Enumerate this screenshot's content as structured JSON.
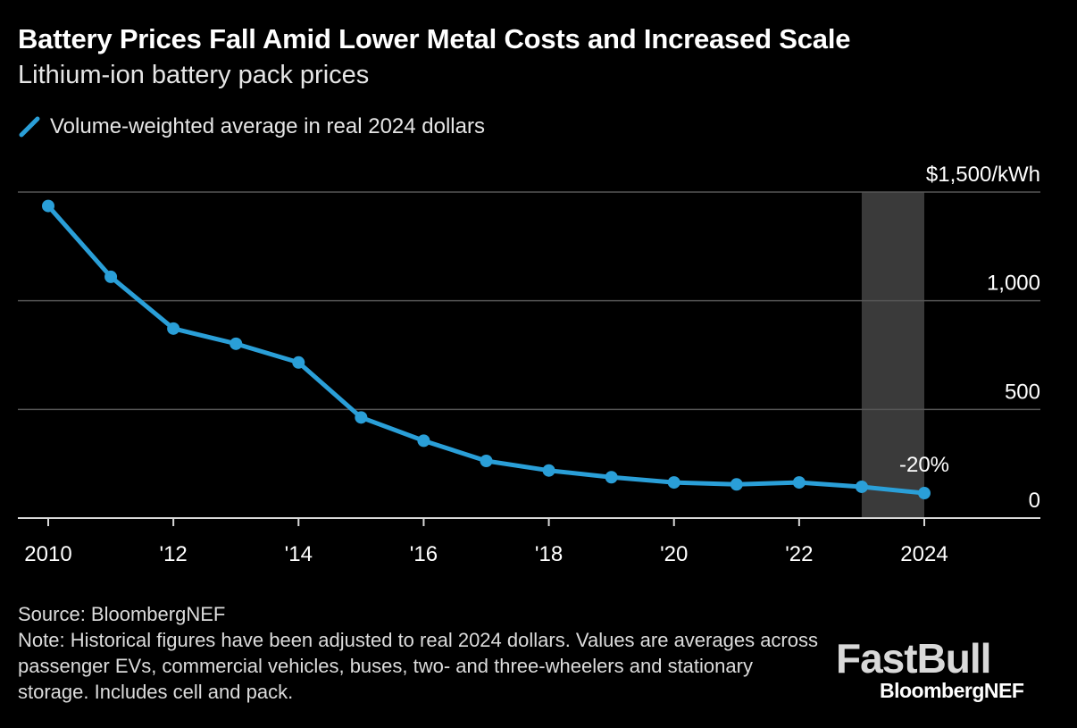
{
  "colors": {
    "line": "#2a9fd8",
    "grid": "#555555",
    "axis": "#d9d9d9",
    "highlight": "#3a3a3a",
    "text": "#ffffff"
  },
  "legend": {
    "label": "Volume-weighted average in real 2024 dollars",
    "icon": "diagonal-line-icon"
  },
  "footer": {
    "source": "Source: BloombergNEF",
    "note": "Note: Historical figures have been adjusted to real 2024 dollars. Values are averages across passenger EVs, commercial vehicles, buses, two- and three-wheelers and stationary storage. Includes cell and pack."
  },
  "watermark": {
    "text": "FastBull"
  },
  "brand": {
    "text": "BloombergNEF"
  },
  "chart_data": {
    "type": "line",
    "title": "Battery Prices Fall Amid Lower Metal Costs and Increased Scale",
    "subtitle": "Lithium-ion battery pack prices",
    "x": [
      2010,
      2011,
      2012,
      2013,
      2014,
      2015,
      2016,
      2017,
      2018,
      2019,
      2020,
      2021,
      2022,
      2023,
      2024
    ],
    "series": [
      {
        "name": "Volume-weighted average in real 2024 dollars",
        "values": [
          1436,
          1110,
          872,
          802,
          716,
          463,
          356,
          263,
          219,
          188,
          164,
          155,
          164,
          144,
          115
        ]
      }
    ],
    "xlim": [
      2010,
      2026
    ],
    "ylim": [
      0,
      1500
    ],
    "y_ticks": [
      0,
      500,
      1000,
      1500
    ],
    "y_tick_labels": [
      "0",
      "500",
      "1,000",
      "$1,500/kWh"
    ],
    "x_ticks": [
      2010,
      2012,
      2014,
      2016,
      2018,
      2020,
      2022,
      2024
    ],
    "x_tick_labels": [
      "2010",
      "'12",
      "'14",
      "'16",
      "'18",
      "'20",
      "'22",
      "2024"
    ],
    "highlight_range": [
      2023,
      2024
    ],
    "annotation": {
      "text": "-20%",
      "x": 2024,
      "y": 115
    },
    "xlabel": "",
    "ylabel": "",
    "grid": true
  }
}
